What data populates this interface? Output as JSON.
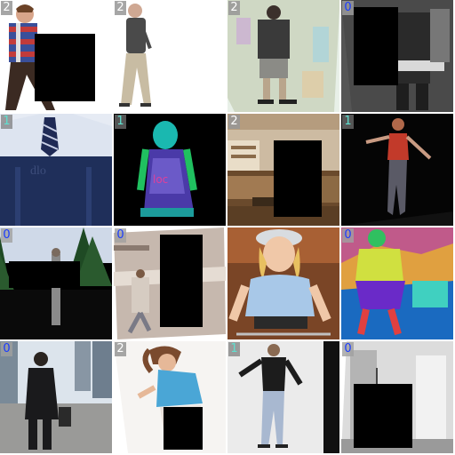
{
  "tiles": [
    {
      "label": "2",
      "label_color": "#ffffff"
    },
    {
      "label": "2",
      "label_color": "#ffffff"
    },
    {
      "label": "2",
      "label_color": "#ffffff"
    },
    {
      "label": "0",
      "label_color": "#1a3cff"
    },
    {
      "label": "1",
      "label_color": "#5fe0d0"
    },
    {
      "label": "1",
      "label_color": "#5fe0d0"
    },
    {
      "label": "2",
      "label_color": "#ffffff"
    },
    {
      "label": "1",
      "label_color": "#5fe0d0"
    },
    {
      "label": "0",
      "label_color": "#1a3cff"
    },
    {
      "label": "0",
      "label_color": "#1a3cff"
    },
    {
      "label": "",
      "label_color": "#ffffff"
    },
    {
      "label": "0",
      "label_color": "#1a3cff"
    },
    {
      "label": "0",
      "label_color": "#1a3cff"
    },
    {
      "label": "2",
      "label_color": "#ffffff"
    },
    {
      "label": "1",
      "label_color": "#5fe0d0"
    },
    {
      "label": "0",
      "label_color": "#1a3cff"
    }
  ]
}
